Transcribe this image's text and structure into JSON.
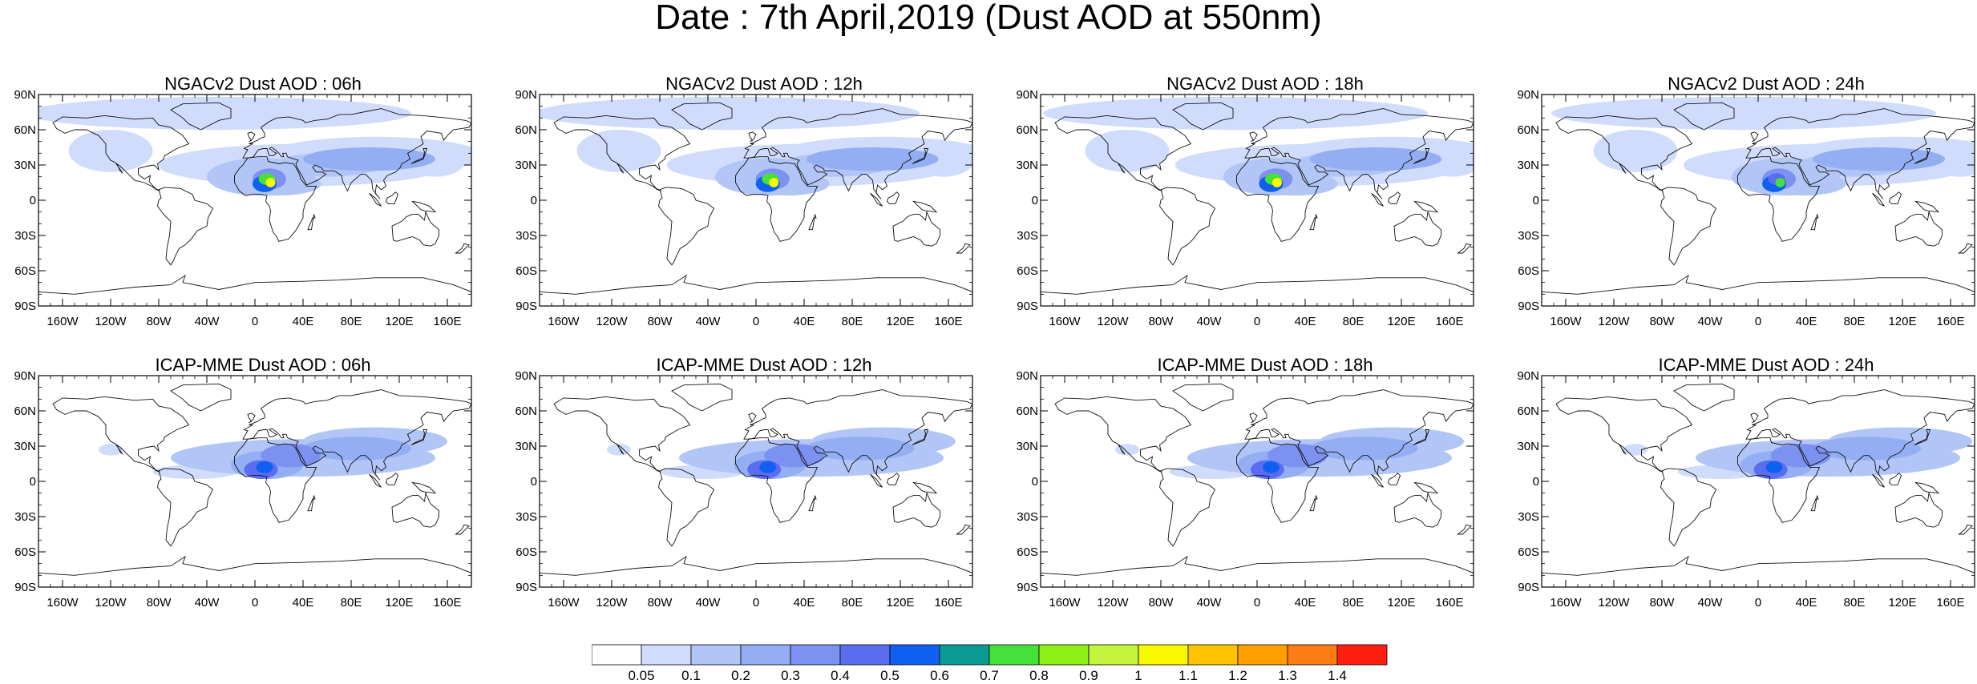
{
  "title": "Date : 7th April,2019 (Dust AOD at 550nm)",
  "colors": {
    "land_outline": "#111111",
    "colorbar": [
      "#ffffff",
      "#d0dcfb",
      "#b2c5f7",
      "#93aef3",
      "#7d92f0",
      "#5a6df0",
      "#0f5ff0",
      "#0a9c94",
      "#46e03a",
      "#8cf018",
      "#c4f43c",
      "#f8f800",
      "#ffc400",
      "#ffa000",
      "#ff7c14",
      "#fe1e10"
    ]
  },
  "chart_data": [
    {
      "type": "heatmap",
      "title": "NGACv2 Dust AOD : 06h",
      "model": "NGACv2",
      "forecast_hour": "06h",
      "x_ticks": [
        "160W",
        "120W",
        "80W",
        "40W",
        "0",
        "40E",
        "80E",
        "120E",
        "160E"
      ],
      "y_ticks": [
        "90N",
        "60N",
        "30N",
        "0",
        "30S",
        "60S",
        "90S"
      ],
      "xlim": [
        -180,
        180
      ],
      "ylim": [
        -90,
        90
      ]
    },
    {
      "type": "heatmap",
      "title": "NGACv2 Dust AOD : 12h",
      "model": "NGACv2",
      "forecast_hour": "12h",
      "x_ticks": [
        "160W",
        "120W",
        "80W",
        "40W",
        "0",
        "40E",
        "80E",
        "120E",
        "160E"
      ],
      "y_ticks": [
        "90N",
        "60N",
        "30N",
        "0",
        "30S",
        "60S",
        "90S"
      ],
      "xlim": [
        -180,
        180
      ],
      "ylim": [
        -90,
        90
      ]
    },
    {
      "type": "heatmap",
      "title": "NGACv2 Dust AOD : 18h",
      "model": "NGACv2",
      "forecast_hour": "18h",
      "x_ticks": [
        "160W",
        "120W",
        "80W",
        "40W",
        "0",
        "40E",
        "80E",
        "120E",
        "160E"
      ],
      "y_ticks": [
        "90N",
        "60N",
        "30N",
        "0",
        "30S",
        "60S",
        "90S"
      ],
      "xlim": [
        -180,
        180
      ],
      "ylim": [
        -90,
        90
      ]
    },
    {
      "type": "heatmap",
      "title": "NGACv2 Dust AOD : 24h",
      "model": "NGACv2",
      "forecast_hour": "24h",
      "x_ticks": [
        "160W",
        "120W",
        "80W",
        "40W",
        "0",
        "40E",
        "80E",
        "120E",
        "160E"
      ],
      "y_ticks": [
        "90N",
        "60N",
        "30N",
        "0",
        "30S",
        "60S",
        "90S"
      ],
      "xlim": [
        -180,
        180
      ],
      "ylim": [
        -90,
        90
      ]
    },
    {
      "type": "heatmap",
      "title": "ICAP-MME Dust AOD : 06h",
      "model": "ICAP-MME",
      "forecast_hour": "06h",
      "x_ticks": [
        "160W",
        "120W",
        "80W",
        "40W",
        "0",
        "40E",
        "80E",
        "120E",
        "160E"
      ],
      "y_ticks": [
        "90N",
        "60N",
        "30N",
        "0",
        "30S",
        "60S",
        "90S"
      ],
      "xlim": [
        -180,
        180
      ],
      "ylim": [
        -90,
        90
      ]
    },
    {
      "type": "heatmap",
      "title": "ICAP-MME Dust AOD : 12h",
      "model": "ICAP-MME",
      "forecast_hour": "12h",
      "x_ticks": [
        "160W",
        "120W",
        "80W",
        "40W",
        "0",
        "40E",
        "80E",
        "120E",
        "160E"
      ],
      "y_ticks": [
        "90N",
        "60N",
        "30N",
        "0",
        "30S",
        "60S",
        "90S"
      ],
      "xlim": [
        -180,
        180
      ],
      "ylim": [
        -90,
        90
      ]
    },
    {
      "type": "heatmap",
      "title": "ICAP-MME Dust AOD : 18h",
      "model": "ICAP-MME",
      "forecast_hour": "18h",
      "x_ticks": [
        "160W",
        "120W",
        "80W",
        "40W",
        "0",
        "40E",
        "80E",
        "120E",
        "160E"
      ],
      "y_ticks": [
        "90N",
        "60N",
        "30N",
        "0",
        "30S",
        "60S",
        "90S"
      ],
      "xlim": [
        -180,
        180
      ],
      "ylim": [
        -90,
        90
      ]
    },
    {
      "type": "heatmap",
      "title": "ICAP-MME Dust AOD : 24h",
      "model": "ICAP-MME",
      "forecast_hour": "24h",
      "x_ticks": [
        "160W",
        "120W",
        "80W",
        "40W",
        "0",
        "40E",
        "80E",
        "120E",
        "160E"
      ],
      "y_ticks": [
        "90N",
        "60N",
        "30N",
        "0",
        "30S",
        "60S",
        "90S"
      ],
      "xlim": [
        -180,
        180
      ],
      "ylim": [
        -90,
        90
      ]
    }
  ],
  "colorbar": {
    "labels": [
      "0.05",
      "0.1",
      "0.2",
      "0.3",
      "0.4",
      "0.5",
      "0.6",
      "0.7",
      "0.8",
      "0.9",
      "1",
      "1.1",
      "1.2",
      "1.3",
      "1.4"
    ]
  }
}
